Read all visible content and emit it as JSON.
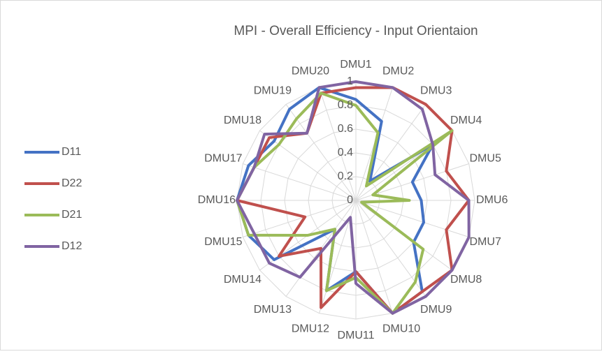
{
  "chart_data": {
    "type": "radar",
    "title": "MPI - Overall Efficiency - Input Orientaion",
    "categories": [
      "DMU1",
      "DMU2",
      "DMU3",
      "DMU4",
      "DMU5",
      "DMU6",
      "DMU7",
      "DMU8",
      "DMU9",
      "DMU10",
      "DMU11",
      "DMU12",
      "DMU13",
      "DMU14",
      "DMU15",
      "DMU16",
      "DMU17",
      "DMU18",
      "DMU19",
      "DMU20"
    ],
    "rlim": [
      0,
      1
    ],
    "rticks": [
      0,
      0.2,
      0.4,
      0.6,
      0.8,
      1
    ],
    "grid": true,
    "legend": "left",
    "series": [
      {
        "name": "D11",
        "color": "#4472c4",
        "values": [
          0.85,
          0.7,
          0.2,
          0.8,
          0.5,
          0.55,
          0.6,
          0.6,
          0.95,
          1,
          0.6,
          0.8,
          0.3,
          0.85,
          0.95,
          1,
          0.95,
          0.85,
          0.95,
          1
        ]
      },
      {
        "name": "D22",
        "color": "#c0504d",
        "values": [
          0.95,
          1,
          1,
          1,
          0.8,
          0.95,
          0.8,
          1,
          0.95,
          1,
          0.6,
          0.95,
          0.5,
          0.8,
          0.45,
          1,
          0.9,
          0.9,
          0.7,
          0.95
        ]
      },
      {
        "name": "D21",
        "color": "#9bbb59",
        "values": [
          0.8,
          0.6,
          0.15,
          1,
          0.15,
          0.45,
          0.05,
          0.7,
          0.85,
          1,
          0.65,
          0.8,
          0.3,
          0.5,
          0.95,
          1,
          0.9,
          0.8,
          0.85,
          0.95
        ]
      },
      {
        "name": "D12",
        "color": "#8064a2",
        "values": [
          1,
          1,
          0.95,
          0.8,
          0.7,
          0.95,
          1,
          1,
          1,
          1,
          0.7,
          0.15,
          0.8,
          0.9,
          0.9,
          1,
          0.9,
          0.95,
          0.7,
          1
        ]
      }
    ]
  }
}
